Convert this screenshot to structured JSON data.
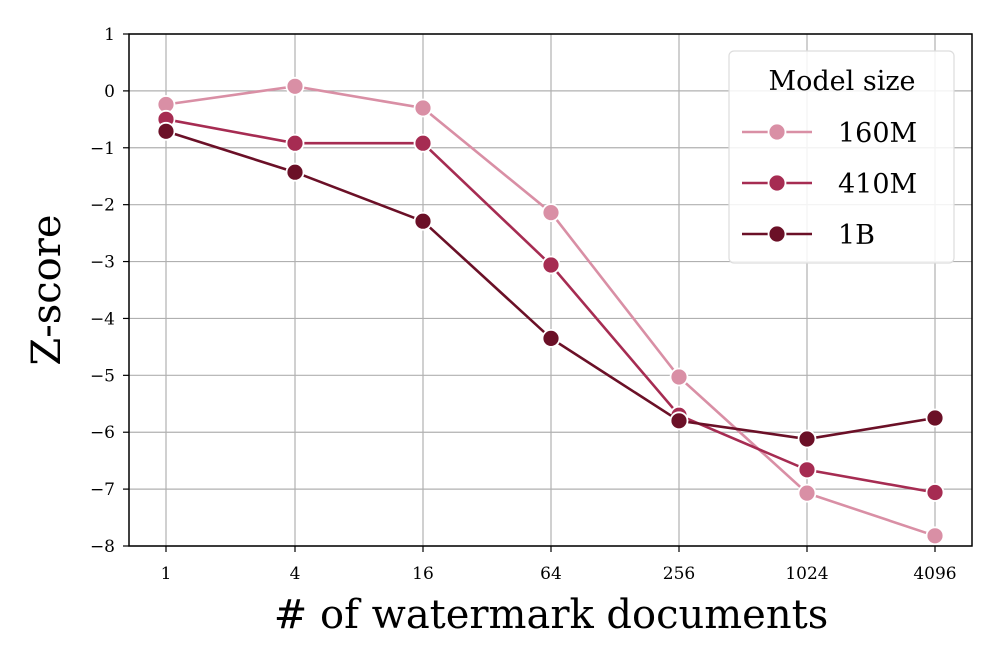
{
  "chart_data": {
    "type": "line",
    "xlabel": "# of watermark documents",
    "ylabel": "Z-score",
    "categories": [
      "1",
      "4",
      "16",
      "64",
      "256",
      "1024",
      "4096"
    ],
    "ylim": [
      -8,
      1
    ],
    "yticks": [
      1,
      0,
      -1,
      -2,
      -3,
      -4,
      -5,
      -6,
      -7,
      -8
    ],
    "ytick_labels": [
      "1",
      "0",
      "−1",
      "−2",
      "−3",
      "−4",
      "−5",
      "−6",
      "−7",
      "−8"
    ],
    "grid": true,
    "legend": {
      "title": "Model size",
      "placement": "top-right"
    },
    "series": [
      {
        "name": "160M",
        "color": "#d98fa5",
        "values": [
          -0.24,
          0.08,
          -0.3,
          -2.14,
          -5.03,
          -7.07,
          -7.82
        ]
      },
      {
        "name": "410M",
        "color": "#a62c52",
        "values": [
          -0.5,
          -0.92,
          -0.92,
          -3.06,
          -5.7,
          -6.66,
          -7.06
        ]
      },
      {
        "name": "1B",
        "color": "#6b1027",
        "values": [
          -0.71,
          -1.43,
          -2.29,
          -4.35,
          -5.8,
          -6.12,
          -5.75
        ]
      }
    ]
  }
}
